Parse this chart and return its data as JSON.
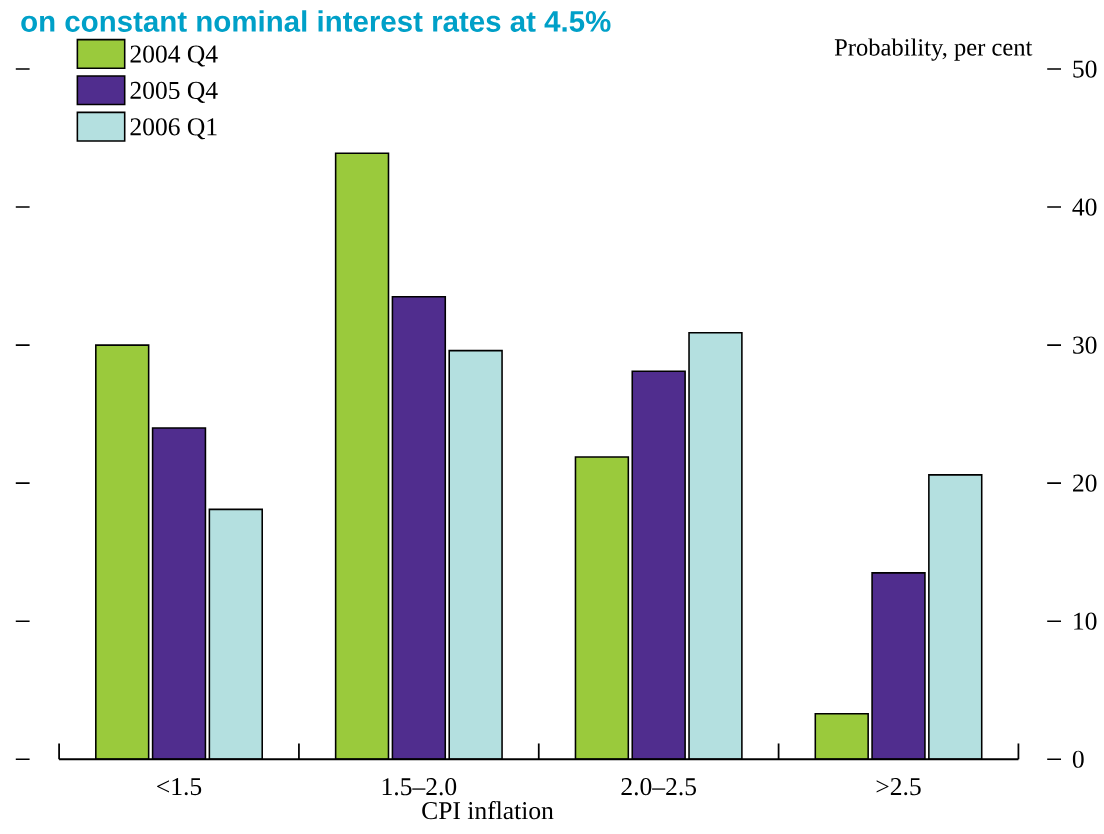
{
  "chart_data": {
    "type": "bar",
    "title": "on constant nominal interest rates at 4.5%",
    "xlabel": "CPI inflation",
    "ylabel": "Probability, per cent",
    "categories": [
      "<1.5",
      "1.5–2.0",
      "2.0–2.5",
      ">2.5"
    ],
    "series": [
      {
        "name": "2004 Q4",
        "color": "#9aca3c",
        "values": [
          30.0,
          43.9,
          21.9,
          3.3
        ]
      },
      {
        "name": "2005 Q4",
        "color": "#502d8e",
        "values": [
          24.0,
          33.5,
          28.1,
          13.5
        ]
      },
      {
        "name": "2006 Q1",
        "color": "#b4e0e0",
        "values": [
          18.1,
          29.6,
          30.9,
          20.6
        ]
      }
    ],
    "ylim": [
      0,
      50
    ],
    "yticks": [
      0,
      10,
      20,
      30,
      40,
      50
    ],
    "legend": "top left",
    "grid": false
  }
}
